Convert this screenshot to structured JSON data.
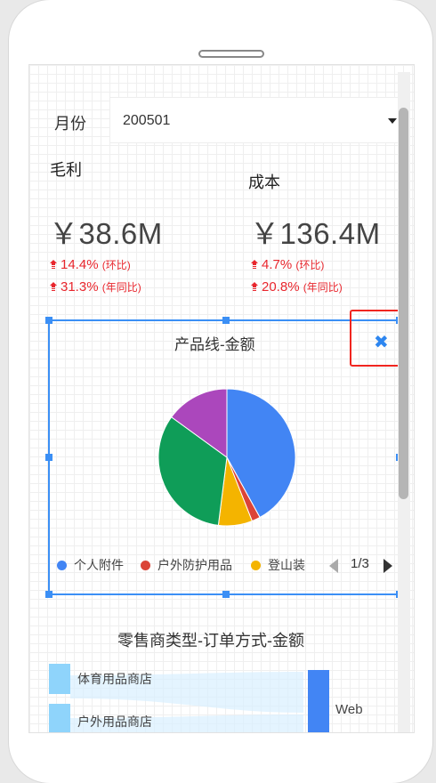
{
  "filter": {
    "label": "月份",
    "value": "200501"
  },
  "metrics": [
    {
      "title": "毛利",
      "value": "￥38.6M",
      "mom": "14.4%",
      "mom_label": "(环比)",
      "yoy": "31.3%",
      "yoy_label": "(年同比)"
    },
    {
      "title": "成本",
      "value": "￥136.4M",
      "mom": "4.7%",
      "mom_label": "(环比)",
      "yoy": "20.8%",
      "yoy_label": "(年同比)"
    }
  ],
  "colors": {
    "up": "#e8262d",
    "accent": "#3b8ff5",
    "highlight": "#f0251f"
  },
  "widget": {
    "title": "产品线-金额",
    "close_icon": "close-icon",
    "pager": "1/3"
  },
  "chart_data": {
    "type": "pie",
    "title": "产品线-金额",
    "legend_position": "bottom",
    "series": [
      {
        "name": "个人附件",
        "value": 42,
        "color": "#4285f4"
      },
      {
        "name": "户外防护用品",
        "value": 2,
        "color": "#db4437"
      },
      {
        "name": "登山装备",
        "value": 8,
        "color": "#f4b400"
      },
      {
        "name": "",
        "value": 33,
        "color": "#0f9d58"
      },
      {
        "name": "",
        "value": 15,
        "color": "#ab47bc"
      }
    ],
    "legend": [
      "个人附件",
      "户外防护用品",
      "登山装"
    ]
  },
  "section2": {
    "title": "零售商类型-订单方式-金额",
    "left_nodes": [
      "体育用品商店",
      "户外用品商店"
    ],
    "right_nodes": [
      "Web"
    ]
  }
}
